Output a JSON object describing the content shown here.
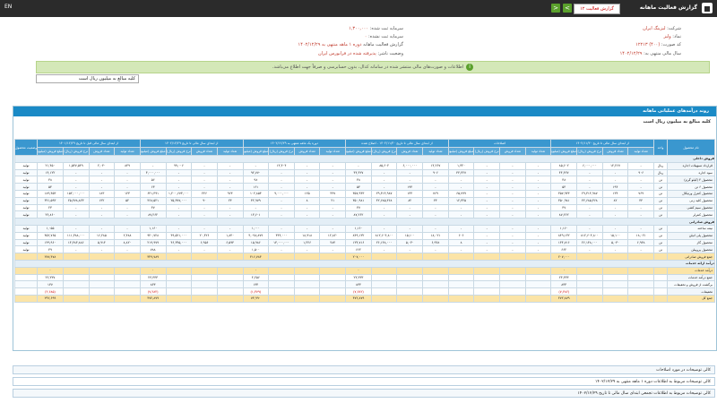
{
  "titlebar": {
    "title": "گزارش فعالیت ماهانه",
    "combo_value": "گزارش فعالیت ۱۲",
    "prev_label": "<",
    "next_label": ">",
    "lang": "EN"
  },
  "header": {
    "company_label": "شرکت:",
    "company_value": "لیزینگ ایران",
    "symbol_label": "نماد:",
    "symbol_value": "ولیز",
    "code_label": "کد صورت:",
    "code_value": "(۴۰۰) ۱۲۲۱۳",
    "report_label": "گزارش فعالیت ماهانه",
    "report_value": "دوره ۱ ماهه منتهی به ۱۴۰۲/۱۲/۲۹",
    "fiscal_label": "سال مالی منتهی به:",
    "fiscal_value": "۱۴۰۲/۱۲/۲۹",
    "capital_label": "سرمایه ثبت شده:",
    "capital_value": "۱,۳۰۰,۰۰۰",
    "unreg_label": "سرمایه ثبت نشده:",
    "unreg_value": "۰",
    "status_label": "وضعیت ناشر:",
    "status_value": "پذیرفته شده در فرابورس ایران"
  },
  "alert": {
    "text": "اطلاعات و صورت‌های مالی منتشر شده در سامانه کدال، بدون حسابرسی و صرفاً جهت اطلاع می‌باشد."
  },
  "select": {
    "value": "کلیه مبالغ به میلیون ریال است"
  },
  "panel": {
    "title": "روند درآمدهای عملیاتی ماهانه",
    "subtitle": "کلیه مبالغ به میلیون ریال است"
  },
  "table": {
    "group_headers": [
      "نام محصول",
      "واحد",
      "از ابتدای سال مالی تا تاریخ ۱۴۰۲/۱۱/۳۰",
      "اصلاحات",
      "از ابتدای سال مالی تا تاریخ ۱۴۰۲/۱۱/۳۰ - اصلاح شده",
      "دوره یک ماهه منتهی به ۱۴۰۲/۱۲/۲۹",
      "از ابتدای سال مالی تا تاریخ ۱۴۰۲/۱۲/۲۹",
      "از ابتدای سال مالی قبل تا تاریخ ۱۴۰۱/۱۲/۲۹",
      "وضعیت محصول واحد"
    ],
    "sub_headers": [
      "تعداد تولید",
      "تعداد فروش",
      "نرخ فروش (ریال)",
      "مبلغ فروش (میلیون ریال)"
    ],
    "rows": [
      {
        "type": "sec",
        "name": "فروش داخلی"
      },
      {
        "name": "قرارداد تسهیلات اجاره",
        "unit": "ریال",
        "c": [
          "-",
          "۱۴,۲۶۷",
          "۶,۰۰۰,۰۰۰",
          "۸۵,۶۰۲",
          "-",
          "-",
          "-",
          "۱,۳۲۰",
          "۱۴,۲۶۷",
          "۶,۰۰۰,۰۰۰",
          "۸۵,۶۰۲",
          "-",
          "-",
          "-",
          "۱۳,۴۰۴",
          "-",
          "-",
          "-",
          "۹۹,۰۰۶",
          "-",
          "۸۴۹",
          "۲,۰۴۰",
          "۱,۵۴۷,۵۴۹",
          "۲۱,۴۵۰"
        ],
        "st": "تولید"
      },
      {
        "name": "سود اجاره",
        "unit": "ریال",
        "c": [
          "۹۰۶",
          "-",
          "-",
          "۴۴,۴۲۷",
          "-",
          "-",
          "-",
          "۴۴,۴۲۷",
          "۹۰۶",
          "-",
          "-",
          "۴۴,۴۲۷",
          "-",
          "-",
          "-",
          "۹۲,۷۷۰",
          "-",
          "-",
          "-",
          "۳,۰۰۰,۰۰۰",
          "-",
          "-",
          "-",
          "۱۴,۱۲۲"
        ],
        "st": "تولید"
      },
      {
        "name": "محصول ۴ (کیلو گرم)",
        "unit": "تن",
        "c": [
          "-",
          "-",
          "-",
          "۳۸",
          "-",
          "-",
          "-",
          "-",
          "-",
          "-",
          "-",
          "۳۸",
          "-",
          "-",
          "-",
          "۹۸",
          "-",
          "-",
          "-",
          "۵۶",
          "-",
          "-",
          "-",
          "۳۸"
        ],
        "st": "تولید"
      },
      {
        "name": "محصول ۶ تن",
        "unit": "تن",
        "c": [
          "-",
          "۱۹۴",
          "-",
          "۵۴",
          "-",
          "-",
          "-",
          "-",
          "-",
          "۱۹۴",
          "-",
          "۵۴",
          "-",
          "-",
          "-",
          "۱۶۱",
          "-",
          "-",
          "-",
          "۶۳",
          "-",
          "-",
          "-",
          "۵۴"
        ],
        "st": "تولید"
      },
      {
        "name": "محصول کنترل ورتیکال",
        "unit": "تن",
        "c": [
          "۷۶۹",
          "۱۳۴",
          "۲۹,۳۱۴,۹۸۷",
          "۳۵۷,۹۴۳",
          "-",
          "-",
          "-",
          "۶۵,۷۹۹",
          "۷۶۹",
          "۱۳۴",
          "۲۹,۳۱۴,۹۸۷",
          "۳۵۷,۹۴۳",
          "۴۴۷",
          "۱۲۵",
          "۹,۰۰۰,۰۰۰",
          "۱۰۲,۸۵۳",
          "۹۶۳",
          "۲۴۶",
          "۱,۲۰۰,۶۷۳,۰۰۰",
          "۶۴۱,۳۹۱",
          "۱۲۳",
          "۱۸۳",
          "۱۵۲,۰۰۰,۰۰۰",
          "۱۸۹,۴۵۳"
        ],
        "st": "تولید"
      },
      {
        "name": "محصول کلید زنی",
        "unit": "تن",
        "c": [
          "۴۴",
          "۸۲",
          "۴۲,۶۸۵,۳۶۸",
          "۳۵۰,۹۸۱",
          "-",
          "-",
          "-",
          "۱۲,۳۲۵",
          "۴۴",
          "۸۲",
          "۴۲,۶۸۵,۳۶۸",
          "۳۵۰,۹۸۱",
          "۲۱",
          "۸",
          "-",
          "۳۲,۹۷۹",
          "۲۳",
          "۹۰",
          "۲۵,۳۷۷,۰۰۰",
          "۳۶۸,۵۲۱",
          "۵۲",
          "۱۳۲",
          "۲۵,۴۷۸,۸۲۳",
          "۳۲۱,۵۹۳"
        ],
        "st": "تولید"
      },
      {
        "name": "محصول سیم کشی",
        "unit": "تن",
        "c": [
          "-",
          "-",
          "-",
          "۳۷",
          "-",
          "-",
          "-",
          "-",
          "-",
          "-",
          "-",
          "۳۷",
          "-",
          "-",
          "-",
          "-",
          "-",
          "-",
          "-",
          "۳۷",
          "-",
          "-",
          "-",
          "۲۳"
        ],
        "st": "تولید"
      },
      {
        "name": "محصول کنترلر",
        "unit": "تن",
        "c": [
          "-",
          "-",
          "-",
          "۸۷,۲۶۲",
          "-",
          "-",
          "-",
          "-",
          "-",
          "-",
          "-",
          "۸۷,۲۶۲",
          "-",
          "-",
          "-",
          "۱۳,۶۰۱",
          "-",
          "-",
          "-",
          "۸۷,۲۶۲",
          "-",
          "-",
          "-",
          "۳۶,۸۶۰"
        ],
        "st": "تولید"
      },
      {
        "type": "sec",
        "name": "فروش صادراتی"
      },
      {
        "name": "نیمه ساخته",
        "unit": "تن",
        "c": [
          "-",
          "-",
          "-",
          "۱,۱۶۰",
          "-",
          "-",
          "-",
          "-",
          "-",
          "-",
          "-",
          "۱,۱۶۰",
          "-",
          "-",
          "-",
          "۱,۰۰۰",
          "-",
          "-",
          "-",
          "۱,۱۶۰",
          "-",
          "-",
          "-",
          "۱,۰۵۵"
        ],
        "st": "تولید"
      },
      {
        "name": "محصول پلی اتیلن",
        "unit": "تن",
        "c": [
          "۱۸,۰۲۱",
          "۱۵,۱۰۰",
          "۸۱۲,۶۰۴,۸۰۰",
          "۸۴۹,۱۳۲",
          "-",
          "-",
          "-",
          "۶۰۶",
          "۱۸,۰۲۱",
          "۱۵,۱۰۰",
          "۸۱۲,۶۰۴,۸۰۰",
          "۸۴۹,۱۳۲",
          "۱۲,۸۲۰",
          "۱۸,۹۱۸",
          "۴۴۴,۰۰۰",
          "۴,۰۹۸,۸۷۹",
          "۱,۸۴۰",
          "۲۰,۴۲۶",
          "۴۹,۵۲۱,۰۰۰",
          "۹۴۰,۷۲۸",
          "۲,۴۸۸",
          "۱۶,۲۸۵",
          "۱۱۱,۳۸۸,۰۰۰",
          "۴۵۲,۷۶۵"
        ],
        "st": "تولید"
      },
      {
        "name": "محصول گاز",
        "unit": "تن",
        "c": [
          "۶,۹۴۸",
          "۵,۰۳۰",
          "۲۶,۱۴۸,۰۰۰",
          "۱۳۴,۷۱۶",
          "-",
          "-",
          "-",
          "۸",
          "۶,۹۴۸",
          "۵,۰۳۰",
          "۲۶,۱۴۸,۰۰۰",
          "۱۳۴,۷۱۶",
          "۴۸۴",
          "۱,۲۲۶",
          "۱۳,۰۰۰,۰۰۰",
          "۱۵,۹۸۶",
          "۶,۵۹۴",
          "۶,۹۵۶",
          "۴۶,۳۴۵,۰۰۰",
          "۲۱۹,۹۷۹",
          "۸,۸۲۰",
          "۵,۹۱۴",
          "۱۳,۴۸۳,۸۸۶",
          "۱۴۹,۹۶۰"
        ],
        "st": "تولید"
      },
      {
        "name": "محصول پروپیلن",
        "unit": "تن",
        "c": [
          "-",
          "-",
          "-",
          "۶۶۲",
          "-",
          "-",
          "-",
          "-",
          "-",
          "-",
          "-",
          "۶۶۲",
          "-",
          "-",
          "-",
          "۱,۵۰۰",
          "-",
          "-",
          "-",
          "۷۸۸",
          "-",
          "-",
          "-",
          "۳۹"
        ],
        "st": "تولید"
      },
      {
        "name": "جمع فروش صادراتی",
        "unit": "",
        "c": [
          "",
          "",
          "",
          "۲۰۷,۰۰۰",
          "",
          "",
          "",
          "",
          "",
          "",
          "",
          "۲۰۷,۰۰۰",
          "",
          "",
          "",
          "۴۱۶,۷۸۳",
          "",
          "",
          "",
          "۳۴۹,۷۸۹",
          "",
          "",
          "",
          "۲۷۷,۴۷۸"
        ],
        "type": "tot",
        "st": ""
      },
      {
        "type": "sec",
        "name": "درآمد ارائه خدمات"
      },
      {
        "name": "درآمد خدمات",
        "unit": "",
        "c": [
          "",
          "",
          "",
          "۰",
          "",
          "",
          "",
          "",
          "",
          "",
          "",
          "۰",
          "",
          "",
          "",
          "۰",
          "",
          "",
          "",
          "۰",
          "",
          "",
          "",
          "۰"
        ],
        "type": "tot",
        "st": ""
      },
      {
        "name": "جمع درآمد خدمات",
        "unit": "",
        "c": [
          "",
          "",
          "",
          "۲۳,۳۳۳",
          "",
          "",
          "",
          "",
          "",
          "",
          "",
          "۲۳,۳۳۳",
          "",
          "",
          "",
          "۴,۲۵۶",
          "",
          "",
          "",
          "۲۳,۳۳۳",
          "",
          "",
          "",
          "۲۲,۳۳۷"
        ],
        "st": ""
      },
      {
        "name": "برگشت از فروش و تخفیفات",
        "unit": "",
        "c": [
          "",
          "",
          "",
          "۸۳۳",
          "",
          "",
          "",
          "",
          "",
          "",
          "",
          "۸۳۳",
          "",
          "",
          "",
          "۱۳۴",
          "",
          "",
          "",
          "۸۳۳",
          "",
          "",
          "",
          "۱۳۷"
        ],
        "st": ""
      },
      {
        "name": "تخفیفات",
        "unit": "",
        "c": [
          "",
          "",
          "",
          "(۷,۲۸۲)",
          "",
          "",
          "",
          "",
          "",
          "",
          "",
          "(۷,۲۸۲)",
          "",
          "",
          "",
          "(۱,۳۷۹)",
          "",
          "",
          "",
          "(۷,۲۸۲)",
          "",
          "",
          "",
          "(۲,۶۸۵)"
        ],
        "neg": true,
        "st": ""
      },
      {
        "name": "جمع کل",
        "unit": "",
        "c": [
          "",
          "",
          "",
          "۴۷۲,۸۷۹",
          "",
          "",
          "",
          "",
          "",
          "",
          "",
          "۴۷۲,۸۷۹",
          "",
          "",
          "",
          "۷۳,۹۹۰",
          "",
          "",
          "",
          "۴۷۲,۸۷۹",
          "",
          "",
          "",
          "۲۹۲,۶۹۹"
        ],
        "type": "tot",
        "st": ""
      }
    ]
  },
  "footer": {
    "line1": "کالی توضیحات در مورد اصلاحات",
    "line2": "کالی توضیحات مربوط به اطلاعات دوره ۱ ماهه منتهی به ۱۴۰۲/۱۲/۲۹",
    "line3": "کالی توضیحات مربوط به اطلاعات تجمعی ابتدای سال مالی تا تاریخ ۱۴۰۲/۱۲/۲۹"
  },
  "watermark": "codal"
}
